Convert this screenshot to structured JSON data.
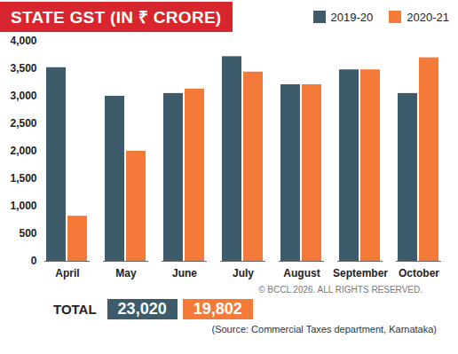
{
  "chart_data": {
    "type": "bar",
    "title": "STATE GST (IN ₹ CRORE)",
    "categories": [
      "April",
      "May",
      "June",
      "July",
      "August",
      "September",
      "October"
    ],
    "series": [
      {
        "name": "2019-20",
        "color": "#3d5b6b",
        "values": [
          3520,
          3000,
          3050,
          3720,
          3210,
          3480,
          3050
        ]
      },
      {
        "name": "2020-21",
        "color": "#f47a3a",
        "values": [
          820,
          2000,
          3130,
          3440,
          3210,
          3480,
          3700
        ]
      }
    ],
    "ylim": [
      0,
      4000
    ],
    "yticks": [
      0,
      500,
      1000,
      1500,
      2000,
      2500,
      3000,
      3500,
      4000
    ],
    "grid": false,
    "legend": "top-right",
    "totals": {
      "label": "TOTAL",
      "values": [
        23020,
        19802
      ],
      "value_labels": [
        "23,020",
        "19,802"
      ]
    },
    "credit": "© BCCL 2026. ALL RIGHTS RESERVED.",
    "source": "(Source: Commercial Taxes department, Karnataka)"
  }
}
